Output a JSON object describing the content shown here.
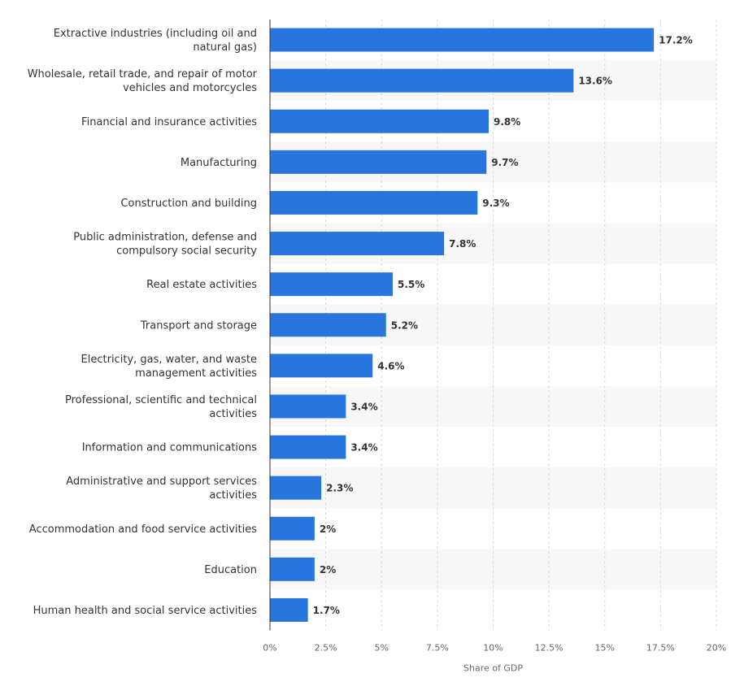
{
  "chart_data": {
    "type": "bar",
    "orientation": "horizontal",
    "categories": [
      "Extractive industries (including oil and natural gas)",
      "Wholesale, retail trade, and repair of motor vehicles and motorcycles",
      "Financial and insurance activities",
      "Manufacturing",
      "Construction and building",
      "Public administration, defense and compulsory social security",
      "Real estate activities",
      "Transport and storage",
      "Electricity, gas, water, and waste management activities",
      "Professional, scientific and technical activities",
      "Information and communications",
      "Administrative and support services activities",
      "Accommodation and food service activities",
      "Education",
      "Human health and social service activities"
    ],
    "values": [
      17.2,
      13.6,
      9.8,
      9.7,
      9.3,
      7.8,
      5.5,
      5.2,
      4.6,
      3.4,
      3.4,
      2.3,
      2,
      2,
      1.7
    ],
    "value_labels": [
      "17.2%",
      "13.6%",
      "9.8%",
      "9.7%",
      "9.3%",
      "7.8%",
      "5.5%",
      "5.2%",
      "4.6%",
      "3.4%",
      "3.4%",
      "2.3%",
      "2%",
      "2%",
      "1.7%"
    ],
    "x_ticks": [
      "0%",
      "2.5%",
      "5%",
      "7.5%",
      "10%",
      "12.5%",
      "15%",
      "17.5%",
      "20%"
    ],
    "xlabel": "Share of GDP",
    "xlim": [
      0,
      20
    ],
    "grid": true,
    "bar_color": "#2876dd",
    "stripe_color": "#f7f7f7"
  }
}
